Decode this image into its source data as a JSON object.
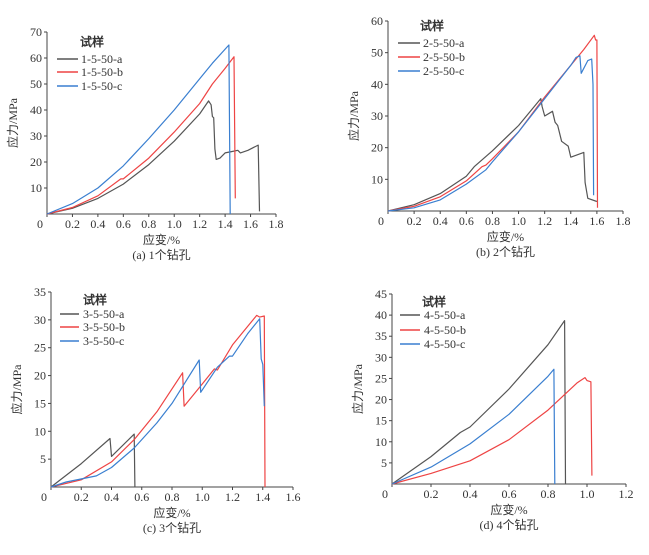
{
  "colors": {
    "a": "#555555",
    "b": "#ee4444",
    "c": "#3a7fd0",
    "axis": "#444444"
  },
  "chart_data": [
    {
      "type": "line",
      "caption": "(a) 1个钻孔",
      "xlabel": "应变/%",
      "ylabel": "应力/MPa",
      "legend_title": "试样",
      "legend_placement": "top-left",
      "xlim": [
        0,
        1.8
      ],
      "ylim": [
        0,
        70
      ],
      "xticks": [
        0,
        0.2,
        0.4,
        0.6,
        0.8,
        1.0,
        1.2,
        1.4,
        1.6,
        1.8
      ],
      "xtick_labels": [
        "0",
        "0.2",
        "0.4",
        "0.6",
        "0.8",
        "1.0",
        "1.2",
        "1.4",
        "1.6",
        "1.8"
      ],
      "yticks": [
        10,
        20,
        30,
        40,
        50,
        60,
        70
      ],
      "ytick_labels": [
        "10",
        "20",
        "30",
        "40",
        "50",
        "60",
        "70"
      ],
      "series": [
        {
          "name": "1-5-50-a",
          "color_key": "a",
          "points": [
            [
              0,
              0
            ],
            [
              0.2,
              2.2
            ],
            [
              0.4,
              6
            ],
            [
              0.6,
              11.5
            ],
            [
              0.8,
              19
            ],
            [
              1.0,
              28
            ],
            [
              1.2,
              38.5
            ],
            [
              1.27,
              43.5
            ],
            [
              1.29,
              42
            ],
            [
              1.3,
              37.5
            ],
            [
              1.31,
              37
            ],
            [
              1.32,
              25
            ],
            [
              1.33,
              21
            ],
            [
              1.36,
              21.5
            ],
            [
              1.4,
              23.5
            ],
            [
              1.45,
              24
            ],
            [
              1.5,
              24.5
            ],
            [
              1.52,
              23.5
            ],
            [
              1.58,
              24.5
            ],
            [
              1.62,
              25.5
            ],
            [
              1.66,
              26.5
            ],
            [
              1.67,
              1
            ]
          ]
        },
        {
          "name": "1-5-50-b",
          "color_key": "b",
          "points": [
            [
              0,
              0
            ],
            [
              0.2,
              2.5
            ],
            [
              0.4,
              7
            ],
            [
              0.58,
              13.5
            ],
            [
              0.6,
              13.5
            ],
            [
              0.8,
              21.5
            ],
            [
              1.0,
              31.5
            ],
            [
              1.2,
              42.5
            ],
            [
              1.3,
              50
            ],
            [
              1.4,
              56
            ],
            [
              1.47,
              60.5
            ],
            [
              1.48,
              6
            ]
          ]
        },
        {
          "name": "1-5-50-c",
          "color_key": "c",
          "points": [
            [
              0,
              0
            ],
            [
              0.2,
              4
            ],
            [
              0.4,
              10
            ],
            [
              0.6,
              18.5
            ],
            [
              0.8,
              29
            ],
            [
              1.0,
              40
            ],
            [
              1.2,
              52
            ],
            [
              1.3,
              58
            ],
            [
              1.43,
              65
            ],
            [
              1.44,
              0
            ]
          ]
        }
      ]
    },
    {
      "type": "line",
      "caption": "(b) 2个钻孔",
      "xlabel": "应变/%",
      "ylabel": "应力/MPa",
      "legend_title": "试样",
      "legend_placement": "top-left",
      "xlim": [
        0,
        1.8
      ],
      "ylim": [
        0,
        60
      ],
      "xticks": [
        0,
        0.2,
        0.4,
        0.6,
        0.8,
        1.0,
        1.2,
        1.4,
        1.6,
        1.8
      ],
      "xtick_labels": [
        "0",
        "0.2",
        "0.4",
        "0.6",
        "0.8",
        "1.0",
        "1.2",
        "1.4",
        "1.6",
        "1.8"
      ],
      "yticks": [
        10,
        20,
        30,
        40,
        50,
        60
      ],
      "ytick_labels": [
        "10",
        "20",
        "30",
        "40",
        "50",
        "60"
      ],
      "series": [
        {
          "name": "2-5-50-a",
          "color_key": "a",
          "points": [
            [
              0,
              0
            ],
            [
              0.2,
              2
            ],
            [
              0.4,
              5.5
            ],
            [
              0.6,
              11
            ],
            [
              0.66,
              14
            ],
            [
              0.8,
              19
            ],
            [
              1.0,
              27
            ],
            [
              1.17,
              35.5
            ],
            [
              1.18,
              33
            ],
            [
              1.2,
              30
            ],
            [
              1.26,
              31.5
            ],
            [
              1.28,
              28
            ],
            [
              1.3,
              27
            ],
            [
              1.33,
              22
            ],
            [
              1.38,
              20.5
            ],
            [
              1.4,
              17
            ],
            [
              1.5,
              18.5
            ],
            [
              1.51,
              9
            ],
            [
              1.53,
              4
            ],
            [
              1.6,
              3
            ]
          ]
        },
        {
          "name": "2-5-50-b",
          "color_key": "b",
          "points": [
            [
              0,
              0
            ],
            [
              0.2,
              1.5
            ],
            [
              0.4,
              4.5
            ],
            [
              0.6,
              9.5
            ],
            [
              0.72,
              14
            ],
            [
              0.75,
              14.5
            ],
            [
              0.8,
              16.5
            ],
            [
              1.0,
              25
            ],
            [
              1.2,
              36
            ],
            [
              1.4,
              46
            ],
            [
              1.5,
              51
            ],
            [
              1.58,
              55.5
            ],
            [
              1.59,
              54
            ],
            [
              1.6,
              54
            ],
            [
              1.605,
              1
            ]
          ]
        },
        {
          "name": "2-5-50-c",
          "color_key": "c",
          "points": [
            [
              0,
              0
            ],
            [
              0.2,
              1
            ],
            [
              0.4,
              3.5
            ],
            [
              0.6,
              8.5
            ],
            [
              0.75,
              13
            ],
            [
              0.8,
              15.5
            ],
            [
              1.0,
              25
            ],
            [
              1.2,
              35.5
            ],
            [
              1.4,
              46
            ],
            [
              1.44,
              48.5
            ],
            [
              1.47,
              49
            ],
            [
              1.48,
              43.5
            ],
            [
              1.53,
              47.5
            ],
            [
              1.56,
              48
            ],
            [
              1.57,
              40
            ],
            [
              1.575,
              5
            ]
          ]
        }
      ]
    },
    {
      "type": "line",
      "caption": "(c) 3个钻孔",
      "xlabel": "应变/%",
      "ylabel": "应力/MPa",
      "legend_title": "试样",
      "legend_placement": "top-left",
      "xlim": [
        0,
        1.6
      ],
      "ylim": [
        0,
        35
      ],
      "xticks": [
        0,
        0.2,
        0.4,
        0.6,
        0.8,
        1.0,
        1.2,
        1.4,
        1.6
      ],
      "xtick_labels": [
        "0",
        "0.2",
        "0.4",
        "0.6",
        "0.8",
        "1.0",
        "1.2",
        "1.4",
        "1.6"
      ],
      "yticks": [
        5,
        10,
        15,
        20,
        25,
        30,
        35
      ],
      "ytick_labels": [
        "5",
        "10",
        "15",
        "20",
        "25",
        "30",
        "35"
      ],
      "series": [
        {
          "name": "3-5-50-a",
          "color_key": "a",
          "points": [
            [
              0,
              0
            ],
            [
              0.2,
              4.2
            ],
            [
              0.39,
              8.7
            ],
            [
              0.4,
              5.5
            ],
            [
              0.55,
              9.5
            ],
            [
              0.555,
              0
            ]
          ]
        },
        {
          "name": "3-5-50-b",
          "color_key": "b",
          "points": [
            [
              0,
              0
            ],
            [
              0.2,
              1.3
            ],
            [
              0.4,
              4.5
            ],
            [
              0.55,
              8.5
            ],
            [
              0.7,
              13.5
            ],
            [
              0.87,
              20.5
            ],
            [
              0.88,
              14.5
            ],
            [
              0.98,
              17.8
            ],
            [
              1.08,
              21.2
            ],
            [
              1.1,
              21
            ],
            [
              1.2,
              25.5
            ],
            [
              1.36,
              30.8
            ],
            [
              1.38,
              30.5
            ],
            [
              1.41,
              30.7
            ],
            [
              1.415,
              0
            ]
          ]
        },
        {
          "name": "3-5-50-c",
          "color_key": "c",
          "points": [
            [
              0,
              0
            ],
            [
              0.1,
              0.9
            ],
            [
              0.3,
              2
            ],
            [
              0.4,
              3.5
            ],
            [
              0.55,
              7
            ],
            [
              0.7,
              11.5
            ],
            [
              0.8,
              15
            ],
            [
              0.98,
              22.8
            ],
            [
              0.99,
              17
            ],
            [
              1.1,
              21.5
            ],
            [
              1.18,
              23.5
            ],
            [
              1.2,
              23.5
            ],
            [
              1.3,
              27.5
            ],
            [
              1.38,
              30.2
            ],
            [
              1.39,
              23
            ],
            [
              1.4,
              22
            ],
            [
              1.41,
              14.5
            ]
          ]
        }
      ]
    },
    {
      "type": "line",
      "caption": "(d) 4个钻孔",
      "xlabel": "应变/%",
      "ylabel": "应力/MPa",
      "legend_title": "试样",
      "legend_placement": "top-left",
      "xlim": [
        0,
        1.2
      ],
      "ylim": [
        0,
        45
      ],
      "xticks": [
        0,
        0.2,
        0.4,
        0.6,
        0.8,
        1.0,
        1.2
      ],
      "xtick_labels": [
        "0",
        "0.2",
        "0.4",
        "0.6",
        "0.8",
        "1.0",
        "1.2"
      ],
      "yticks": [
        5,
        10,
        15,
        20,
        25,
        30,
        35,
        40,
        45
      ],
      "ytick_labels": [
        "5",
        "10",
        "15",
        "20",
        "25",
        "30",
        "35",
        "40",
        "45"
      ],
      "series": [
        {
          "name": "4-5-50-a",
          "color_key": "a",
          "points": [
            [
              0,
              0
            ],
            [
              0.2,
              6.5
            ],
            [
              0.35,
              12.2
            ],
            [
              0.4,
              13.5
            ],
            [
              0.6,
              22.5
            ],
            [
              0.8,
              33
            ],
            [
              0.885,
              38.7
            ],
            [
              0.89,
              0
            ]
          ]
        },
        {
          "name": "4-5-50-b",
          "color_key": "b",
          "points": [
            [
              0,
              0
            ],
            [
              0.2,
              2.5
            ],
            [
              0.4,
              5.5
            ],
            [
              0.6,
              10.5
            ],
            [
              0.8,
              17.5
            ],
            [
              0.95,
              24
            ],
            [
              0.99,
              25.2
            ],
            [
              1.0,
              24.5
            ],
            [
              1.02,
              24.2
            ],
            [
              1.025,
              2
            ]
          ]
        },
        {
          "name": "4-5-50-c",
          "color_key": "c",
          "points": [
            [
              0,
              0
            ],
            [
              0.2,
              4
            ],
            [
              0.4,
              9.5
            ],
            [
              0.6,
              16.5
            ],
            [
              0.8,
              25.5
            ],
            [
              0.83,
              27.2
            ],
            [
              0.835,
              0
            ]
          ]
        }
      ]
    }
  ]
}
